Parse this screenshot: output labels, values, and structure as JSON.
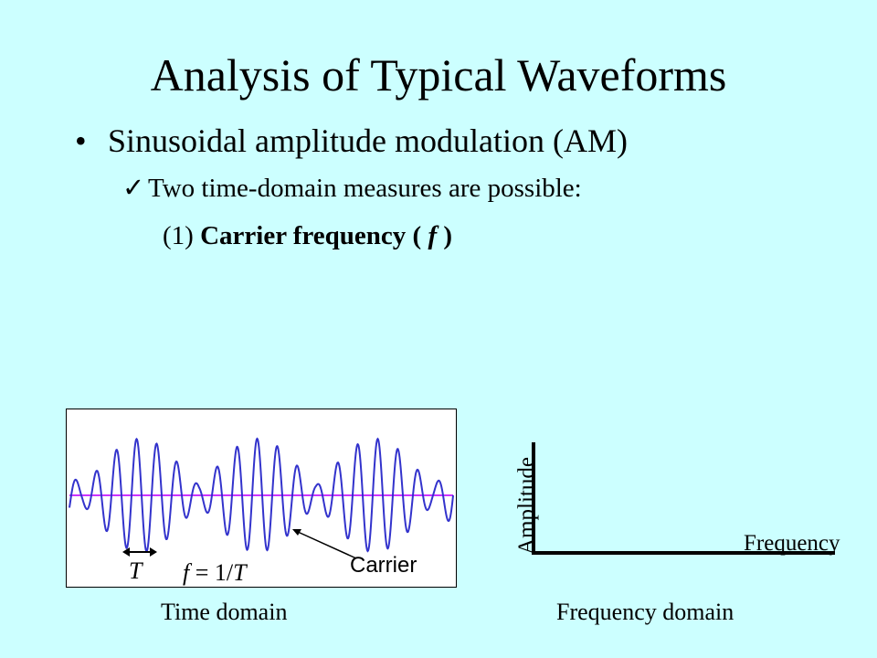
{
  "slide": {
    "title": "Analysis of Typical Waveforms",
    "bullet_symbol": "•",
    "bullet_text": "Sinusoidal amplitude modulation (AM)",
    "check_symbol": "✓",
    "sub_text": "Two time-domain measures are possible:",
    "item_number": "(1)",
    "item_bold": "Carrier frequency",
    "item_paren_open": "(",
    "item_italic": "f",
    "item_paren_close": ")"
  },
  "time_plot": {
    "period_label": "T",
    "formula_f": "f",
    "formula_rest": " = 1/",
    "formula_T": "T",
    "carrier_label": "Carrier",
    "caption": "Time domain",
    "colors": {
      "wave": "#3333cc",
      "baseline": "#cc33ff",
      "background": "#ffffff"
    }
  },
  "freq_plot": {
    "y_label": "Amplitude",
    "x_label": "Frequency",
    "caption": "Frequency domain"
  },
  "colors": {
    "slide_background": "#ccffff",
    "text": "#000000"
  }
}
